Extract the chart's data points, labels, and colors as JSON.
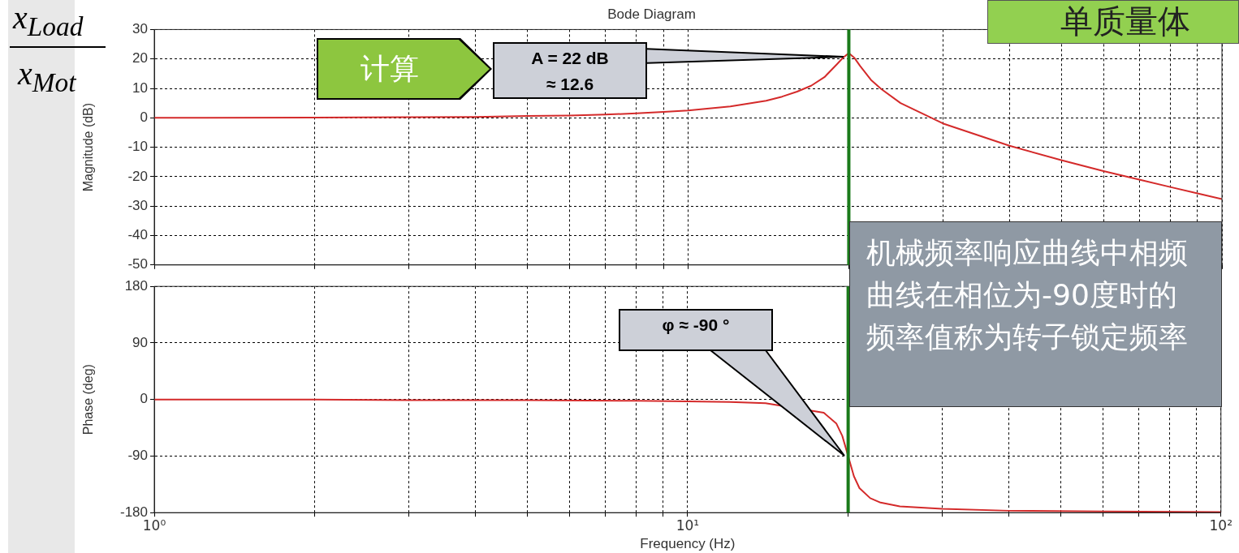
{
  "chart_data": [
    {
      "type": "line",
      "title": "Bode Diagram",
      "ylabel": "Magnitude (dB)",
      "log": "x",
      "grid": true,
      "tick_labels": "y",
      "x": [
        1,
        2,
        3,
        4,
        5,
        6,
        7,
        8,
        9,
        10,
        12,
        14,
        15,
        16,
        17,
        18,
        19,
        19.5,
        20,
        20.5,
        21,
        22,
        23,
        25,
        30,
        40,
        50,
        60,
        70,
        80,
        90,
        100
      ],
      "series": [
        {
          "color": "#d42a2a",
          "values": [
            0,
            0.1,
            0.2,
            0.3,
            0.6,
            0.8,
            1.1,
            1.5,
            2.0,
            2.5,
            3.9,
            5.8,
            7.2,
            8.9,
            10.9,
            13.8,
            18.2,
            20.4,
            22,
            20.3,
            17.6,
            12.9,
            9.8,
            5.0,
            -1.9,
            -9.5,
            -14.4,
            -18.1,
            -21.0,
            -23.5,
            -25.7,
            -27.6
          ]
        }
      ],
      "xlim": [
        1,
        100
      ],
      "xticks": [
        {
          "value": 1,
          "label": null
        },
        {
          "value": 2,
          "label": null
        },
        {
          "value": 3,
          "label": null
        },
        {
          "value": 4,
          "label": null
        },
        {
          "value": 5,
          "label": null
        },
        {
          "value": 6,
          "label": null
        },
        {
          "value": 7,
          "label": null
        },
        {
          "value": 8,
          "label": null
        },
        {
          "value": 9,
          "label": null
        },
        {
          "value": 10,
          "label": null
        },
        {
          "value": 20,
          "label": null
        },
        {
          "value": 30,
          "label": null
        },
        {
          "value": 40,
          "label": null
        },
        {
          "value": 50,
          "label": null
        },
        {
          "value": 60,
          "label": null
        },
        {
          "value": 70,
          "label": null
        },
        {
          "value": 80,
          "label": null
        },
        {
          "value": 90,
          "label": null
        },
        {
          "value": 100,
          "label": null
        }
      ],
      "ylim": [
        -50,
        30
      ],
      "yticks": [
        -50,
        -40,
        -30,
        -20,
        -10,
        0,
        10,
        20,
        30
      ],
      "ref_lines": [
        {
          "axis": "x",
          "value": 20,
          "color": "#1a7a1a"
        }
      ],
      "annotations": [
        "x$_{Load}$",
        "x$_{Mot}$",
        "单质量体",
        "计算",
        "A = 22 dB\n≈ 12.6"
      ]
    },
    {
      "type": "line",
      "xlabel": "Frequency (Hz)",
      "ylabel": "Phase (deg)",
      "log": "x",
      "grid": true,
      "x": [
        1,
        2,
        3,
        5,
        8,
        10,
        12,
        14,
        18,
        19,
        19.5,
        20,
        20.5,
        21,
        22,
        23,
        25,
        30,
        40,
        60,
        100
      ],
      "series": [
        {
          "color": "#d42a2a",
          "values": [
            0,
            0,
            -1,
            -1,
            -2,
            -3,
            -4,
            -6,
            -21,
            -38,
            -58,
            -90,
            -122,
            -141,
            -157,
            -164,
            -170,
            -174,
            -177,
            -178,
            -179
          ]
        }
      ],
      "xlim": [
        1,
        100
      ],
      "xticks": [
        {
          "value": 1,
          "label": "10⁰"
        },
        {
          "value": 2,
          "label": null
        },
        {
          "value": 3,
          "label": null
        },
        {
          "value": 4,
          "label": null
        },
        {
          "value": 5,
          "label": null
        },
        {
          "value": 6,
          "label": null
        },
        {
          "value": 7,
          "label": null
        },
        {
          "value": 8,
          "label": null
        },
        {
          "value": 9,
          "label": null
        },
        {
          "value": 10,
          "label": "10¹"
        },
        {
          "value": 20,
          "label": null
        },
        {
          "value": 30,
          "label": null
        },
        {
          "value": 40,
          "label": null
        },
        {
          "value": 50,
          "label": null
        },
        {
          "value": 60,
          "label": null
        },
        {
          "value": 70,
          "label": null
        },
        {
          "value": 80,
          "label": null
        },
        {
          "value": 90,
          "label": null
        },
        {
          "value": 100,
          "label": "10²"
        }
      ],
      "ylim": [
        -180,
        180
      ],
      "yticks": [
        -180,
        -90,
        0,
        90,
        180
      ],
      "ref_lines": [
        {
          "axis": "x",
          "value": 20,
          "color": "#1a7a1a"
        }
      ],
      "annotations": [
        "φ ≈ -90 °",
        "机械频率响应曲线中相频曲线在相位为-90度时的频率值称为转子锁定频率"
      ]
    }
  ]
}
